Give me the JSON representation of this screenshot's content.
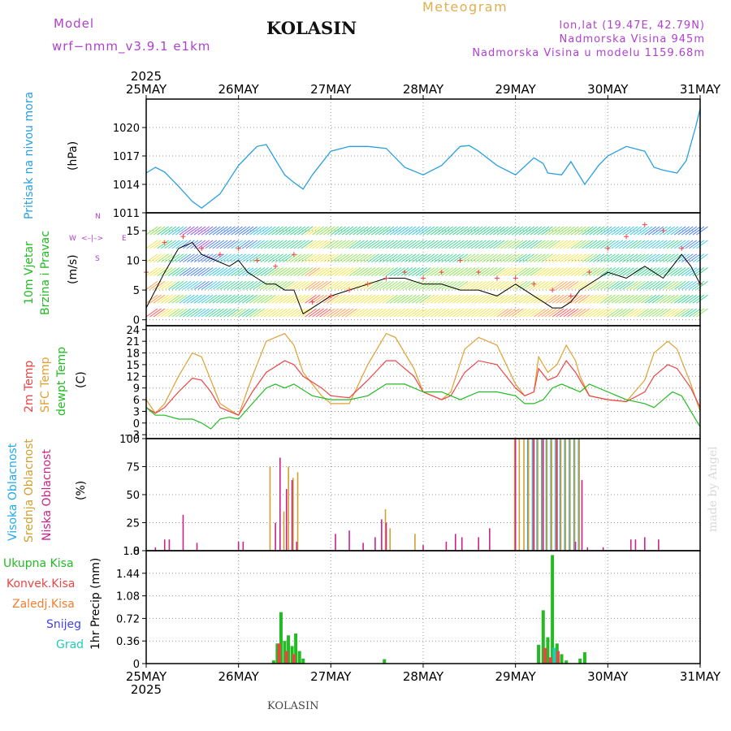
{
  "header": {
    "model_label": "Model",
    "model_name": "wrf−nmm_v3.9.1  e1km",
    "title": "KOLASIN",
    "meteogram_label": "Meteogram",
    "location": "lon,lat (19.47E, 42.79N)",
    "altitude": "Nadmorska Visina 945m",
    "model_altitude": "Nadmorska Visina u modelu 1159.68m",
    "year_top": "2025",
    "year_bottom": "2025"
  },
  "footer": {
    "station": "KOLASIN",
    "credit": "made by Angel"
  },
  "colors": {
    "pressure": "#29a0e0",
    "wind_label": "#22bb22",
    "wind_speed": "#000000",
    "gust": "#ee4444",
    "temp_2m": "#ee4444",
    "temp_sfc": "#e0a030",
    "dewpoint": "#22bb22",
    "cloud_high": "#22aaee",
    "cloud_mid": "#d0a030",
    "cloud_low": "#cc2288",
    "precip_total": "#22bb22",
    "precip_conv": "#ee4444",
    "precip_frz": "#f08030",
    "precip_snow": "#4040ee",
    "precip_hail": "#22ccbb"
  },
  "chart_data": [
    {
      "type": "line",
      "panel": "pressure",
      "ylabel": [
        "Pritisak na nivou mora",
        "(hPa)"
      ],
      "y_ticks": [
        "1011",
        "1014",
        "1017",
        "1020"
      ],
      "ylim": [
        1011,
        1023
      ],
      "x_ticks": [
        "25MAY",
        "26MAY",
        "27MAY",
        "28MAY",
        "29MAY",
        "30MAY",
        "31MAY"
      ],
      "x_unit": "days since 25MAY 00",
      "series": [
        {
          "x": [
            0,
            0.1,
            0.2,
            0.35,
            0.5,
            0.6,
            0.8,
            1.0,
            1.1,
            1.2,
            1.3,
            1.5,
            1.6,
            1.7,
            1.8,
            2.0,
            2.2,
            2.4,
            2.6,
            2.8,
            3.0,
            3.2,
            3.4,
            3.5,
            3.6,
            3.8,
            4.0,
            4.2,
            4.3,
            4.35,
            4.5,
            4.6,
            4.75,
            4.9,
            5.0,
            5.2,
            5.4,
            5.5,
            5.6,
            5.75,
            5.85,
            5.95,
            6.0
          ],
          "values": [
            1015.2,
            1015.8,
            1015.3,
            1013.8,
            1012.2,
            1011.5,
            1013.0,
            1016.0,
            1017.0,
            1018.0,
            1018.2,
            1015.0,
            1014.2,
            1013.5,
            1015.0,
            1017.5,
            1018.0,
            1018.0,
            1017.8,
            1015.8,
            1015.0,
            1016.0,
            1018.0,
            1018.1,
            1017.5,
            1016.0,
            1015.0,
            1016.8,
            1016.2,
            1015.2,
            1015.0,
            1016.4,
            1014.0,
            1016.0,
            1017.0,
            1018.0,
            1017.5,
            1015.8,
            1015.5,
            1015.2,
            1016.5,
            1020.0,
            1022.0
          ]
        }
      ]
    },
    {
      "type": "line",
      "panel": "wind",
      "ylabel": [
        "10m Vjetar",
        "Brzina i Pravac",
        "(m/s)"
      ],
      "compass": [
        "N",
        "W",
        "E",
        "S"
      ],
      "y_ticks": [
        "0",
        "5",
        "10",
        "15"
      ],
      "ylim": [
        -1,
        18
      ],
      "series": [
        {
          "name": "speed",
          "x": [
            0,
            0.1,
            0.2,
            0.35,
            0.5,
            0.6,
            0.75,
            0.9,
            1.0,
            1.1,
            1.2,
            1.3,
            1.4,
            1.5,
            1.6,
            1.7,
            1.8,
            1.9,
            2.0,
            2.2,
            2.4,
            2.6,
            2.8,
            3.0,
            3.2,
            3.4,
            3.6,
            3.8,
            4.0,
            4.1,
            4.2,
            4.3,
            4.4,
            4.5,
            4.6,
            4.7,
            4.8,
            4.9,
            5.0,
            5.2,
            5.3,
            5.4,
            5.5,
            5.6,
            5.7,
            5.8,
            5.9,
            6.0
          ],
          "values": [
            2,
            5,
            8,
            12,
            13,
            11,
            10,
            9,
            10,
            8,
            7,
            6,
            6,
            5,
            5,
            1,
            2,
            3,
            4,
            5,
            6,
            7,
            7,
            6,
            6,
            5,
            5,
            4,
            6,
            5,
            4,
            3,
            2,
            2,
            3,
            5,
            6,
            7,
            8,
            7,
            8,
            9,
            8,
            7,
            9,
            11,
            9,
            6
          ]
        },
        {
          "name": "gust",
          "x": [
            0,
            0.2,
            0.4,
            0.6,
            0.8,
            1.0,
            1.2,
            1.4,
            1.6,
            1.8,
            2.0,
            2.2,
            2.4,
            2.6,
            2.8,
            3.0,
            3.2,
            3.4,
            3.6,
            3.8,
            4.0,
            4.2,
            4.4,
            4.6,
            4.8,
            5.0,
            5.2,
            5.4,
            5.6,
            5.8,
            6.0
          ],
          "values": [
            8,
            13,
            14,
            12,
            11,
            12,
            10,
            9,
            11,
            3,
            4,
            5,
            6,
            7,
            8,
            7,
            8,
            10,
            8,
            7,
            7,
            6,
            5,
            4,
            8,
            12,
            14,
            16,
            15,
            12,
            6
          ]
        }
      ]
    },
    {
      "type": "line",
      "panel": "temperature",
      "ylabel": [
        "2m Temp",
        "SFC Temp",
        "dewpt Temp",
        "(C)"
      ],
      "y_ticks": [
        "−3",
        "0",
        "3",
        "6",
        "9",
        "12",
        "15",
        "18",
        "21",
        "24"
      ],
      "ylim": [
        -4,
        25
      ],
      "series": [
        {
          "name": "2m Temp",
          "x": [
            0,
            0.1,
            0.2,
            0.35,
            0.5,
            0.6,
            0.7,
            0.8,
            0.9,
            1.0,
            1.15,
            1.3,
            1.5,
            1.6,
            1.7,
            1.9,
            2.0,
            2.2,
            2.4,
            2.6,
            2.7,
            2.9,
            3.0,
            3.2,
            3.3,
            3.45,
            3.6,
            3.8,
            4.0,
            4.1,
            4.2,
            4.25,
            4.35,
            4.45,
            4.55,
            4.65,
            4.7,
            4.8,
            5.0,
            5.2,
            5.4,
            5.5,
            5.65,
            5.75,
            5.9,
            6.0
          ],
          "values": [
            4,
            2.5,
            4,
            8,
            11.5,
            11,
            8,
            4,
            3,
            2,
            8,
            13,
            16,
            15,
            12,
            9,
            7,
            6.5,
            11,
            16,
            16,
            12,
            8,
            6,
            7,
            13,
            16,
            15,
            9,
            7,
            8,
            14,
            11,
            12,
            16,
            13,
            11,
            7,
            6,
            5.5,
            8,
            12,
            15,
            14,
            9,
            4
          ]
        },
        {
          "name": "SFC Temp",
          "x": [
            0,
            0.1,
            0.2,
            0.35,
            0.5,
            0.6,
            0.7,
            0.8,
            0.9,
            1.0,
            1.15,
            1.3,
            1.5,
            1.6,
            1.7,
            1.9,
            2.0,
            2.2,
            2.4,
            2.6,
            2.7,
            2.9,
            3.0,
            3.2,
            3.3,
            3.45,
            3.6,
            3.8,
            4.0,
            4.1,
            4.2,
            4.25,
            4.35,
            4.45,
            4.55,
            4.65,
            4.7,
            4.8,
            5.0,
            5.2,
            5.4,
            5.5,
            5.65,
            5.75,
            5.9,
            6.0
          ],
          "values": [
            6,
            2.5,
            5,
            12,
            18,
            17,
            11,
            5,
            3.5,
            2,
            12,
            21,
            23,
            20,
            13,
            7,
            5,
            5,
            15,
            23,
            22,
            14,
            8,
            6,
            8,
            19,
            22,
            20,
            10,
            7,
            8,
            17,
            13,
            15,
            20,
            16,
            12,
            7,
            6,
            5.5,
            11,
            18,
            21,
            19,
            10,
            3
          ]
        },
        {
          "name": "dewpt Temp",
          "x": [
            0,
            0.1,
            0.2,
            0.35,
            0.5,
            0.6,
            0.7,
            0.8,
            0.9,
            1.0,
            1.15,
            1.3,
            1.4,
            1.5,
            1.6,
            1.8,
            2.0,
            2.2,
            2.4,
            2.6,
            2.8,
            3.0,
            3.2,
            3.4,
            3.6,
            3.8,
            4.0,
            4.1,
            4.2,
            4.3,
            4.4,
            4.5,
            4.6,
            4.7,
            4.8,
            5.0,
            5.2,
            5.4,
            5.5,
            5.6,
            5.7,
            5.8,
            5.9,
            6.0
          ],
          "values": [
            4,
            2,
            2,
            1,
            1,
            0,
            -1.5,
            1,
            1.5,
            1,
            5,
            9,
            10,
            9,
            10,
            7,
            6,
            6,
            7,
            10,
            10,
            8,
            8,
            6,
            8,
            8,
            7,
            5,
            5,
            6,
            9,
            10,
            9,
            8,
            10,
            8,
            6,
            5,
            4,
            6,
            8,
            7,
            3,
            -1
          ]
        }
      ]
    },
    {
      "type": "bar",
      "panel": "clouds",
      "ylabel": [
        "Visoka Oblacnost",
        "Srednja Oblacnost",
        "Niska Oblacnost",
        "(%)"
      ],
      "y_ticks": [
        "0",
        "25",
        "50",
        "75",
        "100"
      ],
      "ylim": [
        0,
        100
      ],
      "series": [
        {
          "name": "Visoka Oblacnost",
          "x": [
            4.12,
            4.17,
            4.22,
            4.27,
            4.32,
            4.37,
            4.42,
            4.47,
            4.52,
            4.57,
            4.62,
            4.67
          ],
          "values": [
            100,
            100,
            100,
            100,
            100,
            100,
            100,
            100,
            100,
            100,
            100,
            100
          ]
        },
        {
          "name": "Srednja Oblacnost",
          "x": [
            1.35,
            1.5,
            1.55,
            1.6,
            1.65,
            2.6,
            2.65,
            2.92,
            4.0,
            4.05,
            4.1,
            4.15,
            4.2,
            4.25,
            4.3,
            4.35,
            4.4,
            4.45,
            4.5,
            4.55,
            4.6,
            4.65,
            4.7
          ],
          "values": [
            75,
            35,
            75,
            65,
            70,
            37,
            20,
            15,
            100,
            100,
            100,
            100,
            100,
            100,
            100,
            100,
            100,
            100,
            100,
            100,
            100,
            100,
            100
          ]
        },
        {
          "name": "Niska Oblacnost",
          "x": [
            0.1,
            0.2,
            0.25,
            0.4,
            0.55,
            1.0,
            1.05,
            1.4,
            1.45,
            1.52,
            1.58,
            1.63,
            2.05,
            2.2,
            2.35,
            2.48,
            2.55,
            2.6,
            3.0,
            3.25,
            3.35,
            3.42,
            3.6,
            3.72,
            4.0,
            4.2,
            4.3,
            4.45,
            4.65,
            4.72,
            4.78,
            4.95,
            5.25,
            5.3,
            5.4,
            5.55
          ],
          "values": [
            3,
            10,
            10,
            32,
            7,
            8,
            8,
            25,
            83,
            55,
            63,
            8,
            15,
            18,
            7,
            12,
            28,
            25,
            5,
            8,
            15,
            12,
            12,
            20,
            100,
            100,
            100,
            100,
            8,
            63,
            3,
            3,
            10,
            10,
            12,
            10
          ]
        }
      ]
    },
    {
      "type": "bar",
      "panel": "precipitation",
      "legend": [
        "Ukupna Kisa",
        "Konvek.Kisa",
        "Zaledj.Kisa",
        "Snijeg",
        "Grad"
      ],
      "ylabel": "1hr Precip (mm)",
      "y_ticks": [
        "0",
        "0.36",
        "0.72",
        "1.08",
        "1.44",
        "1.8"
      ],
      "ylim": [
        0,
        1.8
      ],
      "series": [
        {
          "name": "Ukupna Kisa",
          "x": [
            1.38,
            1.42,
            1.46,
            1.5,
            1.54,
            1.58,
            1.62,
            1.66,
            1.7,
            2.58,
            4.25,
            4.3,
            4.35,
            4.4,
            4.45,
            4.5,
            4.55,
            4.7,
            4.75
          ],
          "values": [
            0.05,
            0.32,
            0.82,
            0.36,
            0.45,
            0.28,
            0.48,
            0.2,
            0.08,
            0.07,
            0.3,
            0.85,
            0.42,
            1.73,
            0.32,
            0.15,
            0.05,
            0.08,
            0.18
          ]
        },
        {
          "name": "Konvek.Kisa",
          "x": [
            1.44,
            1.52,
            1.6,
            4.32,
            4.38,
            4.46
          ],
          "values": [
            0.32,
            0.2,
            0.15,
            0.25,
            0.1,
            0.2
          ]
        },
        {
          "name": "Grad",
          "x": [
            4.42
          ],
          "values": [
            0.25
          ]
        }
      ]
    }
  ]
}
